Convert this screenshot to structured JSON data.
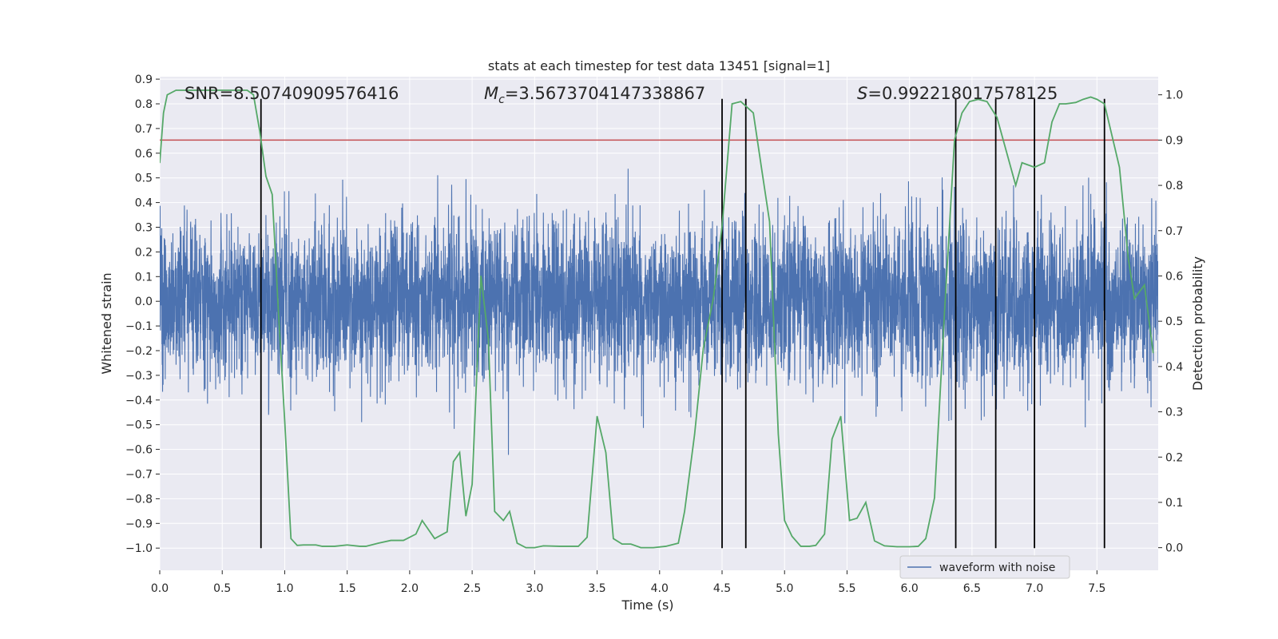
{
  "chart_data": {
    "type": "line",
    "title": "stats at each timestep for test data 13451 [signal=1]",
    "xlabel": "Time (s)",
    "ylabel": "Whitened strain",
    "y2label": "Detection probability",
    "xlim": [
      0.0,
      7.99
    ],
    "ylim": [
      -1.09,
      0.91
    ],
    "y2lim": [
      -0.05,
      1.04
    ],
    "xticks": [
      0.0,
      0.5,
      1.0,
      1.5,
      2.0,
      2.5,
      3.0,
      3.5,
      4.0,
      4.5,
      5.0,
      5.5,
      6.0,
      6.5,
      7.0,
      7.5
    ],
    "xtick_labels": [
      "0.0",
      "0.5",
      "1.0",
      "1.5",
      "2.0",
      "2.5",
      "3.0",
      "3.5",
      "4.0",
      "4.5",
      "5.0",
      "5.5",
      "6.0",
      "6.5",
      "7.0",
      "7.5"
    ],
    "yticks": [
      0.9,
      0.8,
      0.7,
      0.6,
      0.5,
      0.4,
      0.3,
      0.2,
      0.1,
      0.0,
      -0.1,
      -0.2,
      -0.3,
      -0.4,
      -0.5,
      -0.6,
      -0.7,
      -0.8,
      -0.9,
      -1.0
    ],
    "ytick_labels": [
      "0.9",
      "0.8",
      "0.7",
      "0.6",
      "0.5",
      "0.4",
      "0.3",
      "0.2",
      "0.1",
      "0.0",
      "−0.1",
      "−0.2",
      "−0.3",
      "−0.4",
      "−0.5",
      "−0.6",
      "−0.7",
      "−0.8",
      "−0.9",
      "−1.0"
    ],
    "y2ticks": [
      1.0,
      0.9,
      0.8,
      0.7,
      0.6,
      0.5,
      0.4,
      0.3,
      0.2,
      0.1,
      0.0
    ],
    "y2tick_labels": [
      "1.0",
      "0.9",
      "0.8",
      "0.7",
      "0.6",
      "0.5",
      "0.4",
      "0.3",
      "0.2",
      "0.1",
      "0.0"
    ],
    "grid": true,
    "legend_placement": "bottom-right",
    "annotations": {
      "snr": "SNR=8.50740909576416",
      "mc_symbol": "M",
      "mc_subscript": "c",
      "mc_value": "=3.5673704147338867",
      "s_symbol": "S",
      "s_value": "=0.992218017578125"
    },
    "threshold": 0.9,
    "vertical_lines_x": [
      0.81,
      4.5,
      4.69,
      6.37,
      6.69,
      7.0,
      7.56
    ],
    "vertical_lines_range": [
      -1.0,
      0.82
    ],
    "series": [
      {
        "name": "waveform with noise",
        "color": "#4c72b0",
        "noise_sigma": 0.16,
        "description_band": [
          -0.35,
          0.35
        ]
      },
      {
        "color": "#55a868",
        "axis": "right",
        "x": [
          0.0,
          0.03,
          0.06,
          0.13,
          0.2,
          0.3,
          0.4,
          0.5,
          0.6,
          0.7,
          0.75,
          0.8,
          0.85,
          0.9,
          0.95,
          1.0,
          1.05,
          1.1,
          1.15,
          1.25,
          1.3,
          1.35,
          1.4,
          1.5,
          1.6,
          1.65,
          1.75,
          1.85,
          1.95,
          2.05,
          2.1,
          2.2,
          2.3,
          2.35,
          2.4,
          2.45,
          2.5,
          2.57,
          2.63,
          2.68,
          2.75,
          2.8,
          2.86,
          2.93,
          3.0,
          3.07,
          3.2,
          3.35,
          3.42,
          3.5,
          3.57,
          3.63,
          3.7,
          3.77,
          3.85,
          3.95,
          4.05,
          4.15,
          4.2,
          4.28,
          4.35,
          4.43,
          4.5,
          4.58,
          4.65,
          4.75,
          4.82,
          4.88,
          4.95,
          5.0,
          5.06,
          5.13,
          5.2,
          5.25,
          5.32,
          5.38,
          5.45,
          5.52,
          5.58,
          5.65,
          5.72,
          5.8,
          5.9,
          6.0,
          6.07,
          6.13,
          6.2,
          6.28,
          6.36,
          6.42,
          6.48,
          6.55,
          6.62,
          6.7,
          6.78,
          6.85,
          6.9,
          7.0,
          7.08,
          7.14,
          7.2,
          7.25,
          7.33,
          7.39,
          7.45,
          7.5,
          7.56,
          7.62,
          7.68,
          7.75,
          7.8,
          7.88,
          7.95
        ],
        "values": [
          0.85,
          0.96,
          1.0,
          1.01,
          1.01,
          1.01,
          1.01,
          1.01,
          1.01,
          1.01,
          1.0,
          0.92,
          0.82,
          0.78,
          0.52,
          0.28,
          0.02,
          0.005,
          0.006,
          0.006,
          0.003,
          0.003,
          0.003,
          0.006,
          0.003,
          0.003,
          0.01,
          0.016,
          0.016,
          0.03,
          0.06,
          0.02,
          0.035,
          0.19,
          0.21,
          0.07,
          0.14,
          0.6,
          0.46,
          0.08,
          0.06,
          0.08,
          0.01,
          0.0,
          0.0,
          0.004,
          0.003,
          0.003,
          0.023,
          0.29,
          0.21,
          0.02,
          0.008,
          0.008,
          0.0,
          0.0,
          0.003,
          0.01,
          0.08,
          0.25,
          0.44,
          0.55,
          0.71,
          0.98,
          0.985,
          0.96,
          0.83,
          0.72,
          0.25,
          0.06,
          0.025,
          0.003,
          0.003,
          0.005,
          0.03,
          0.24,
          0.29,
          0.06,
          0.065,
          0.1,
          0.015,
          0.004,
          0.002,
          0.002,
          0.003,
          0.02,
          0.11,
          0.52,
          0.9,
          0.96,
          0.985,
          0.99,
          0.985,
          0.95,
          0.87,
          0.8,
          0.85,
          0.84,
          0.85,
          0.94,
          0.98,
          0.98,
          0.983,
          0.99,
          0.995,
          0.99,
          0.98,
          0.91,
          0.84,
          0.64,
          0.55,
          0.58,
          0.43
        ]
      }
    ]
  }
}
